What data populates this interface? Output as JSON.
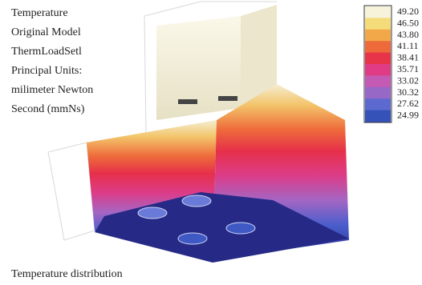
{
  "header": {
    "lines": [
      "Temperature",
      "Original Model",
      "ThermLoadSetl",
      "Principal Units:",
      "milimeter Newton",
      "Second (mmNs)"
    ]
  },
  "legend": {
    "labels": [
      "49.20",
      "46.50",
      "43.80",
      "41.11",
      "38.41",
      "35.71",
      "33.02",
      "30.32",
      "27.62",
      "24.99"
    ],
    "colors": [
      "#f7f2da",
      "#f4dc7a",
      "#f2a848",
      "#ee6a3a",
      "#e83448",
      "#e03c86",
      "#c45ab4",
      "#9868c6",
      "#5c6ad0",
      "#3452b8"
    ]
  },
  "caption": "Temperature distribution"
}
